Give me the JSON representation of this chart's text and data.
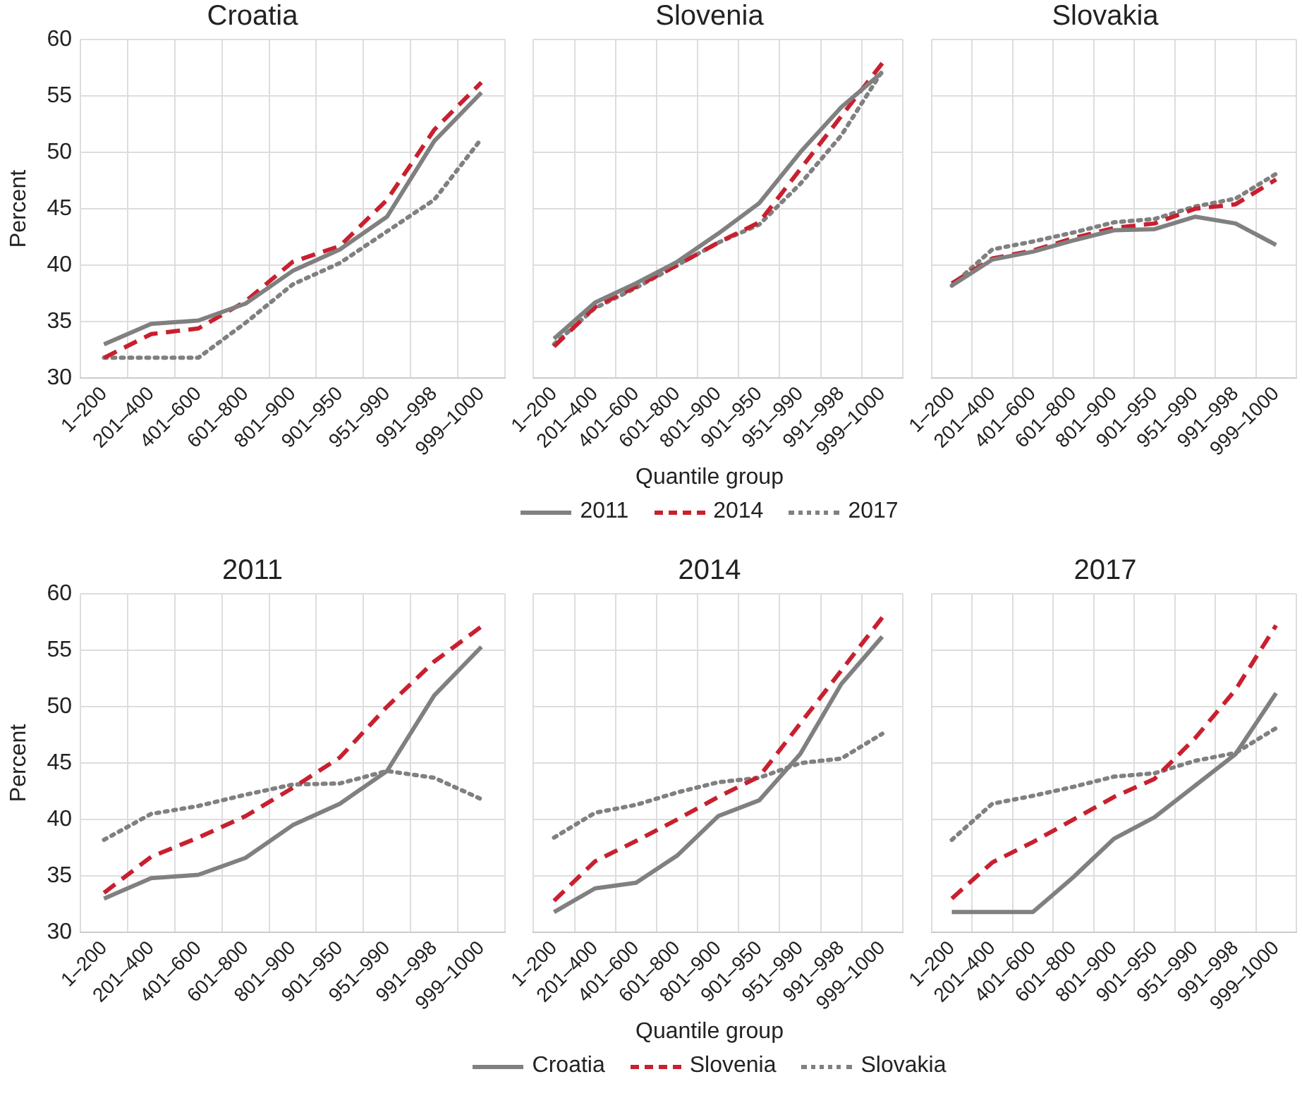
{
  "chart_data": [
    {
      "type": "line",
      "title": "Croatia",
      "ylabel": "Percent",
      "categories": [
        "1–200",
        "201–400",
        "401–600",
        "601–800",
        "801–900",
        "901–950",
        "951–990",
        "991–998",
        "999–1000"
      ],
      "ylim": [
        30,
        60
      ],
      "yticks": [
        30,
        35,
        40,
        45,
        50,
        55,
        60
      ],
      "grid": true,
      "legend": false,
      "marker": "none",
      "series": [
        {
          "color": "#808080",
          "line_style": "solid",
          "values": [
            33,
            34.8,
            35.1,
            36.6,
            39.5,
            41.4,
            44.3,
            51,
            55.3
          ]
        },
        {
          "color": "#c8202f",
          "line_style": "dashed",
          "values": [
            31.8,
            33.9,
            34.4,
            36.8,
            40.3,
            41.7,
            45.8,
            52,
            56.2
          ]
        },
        {
          "color": "#808080",
          "line_style": "dotted",
          "values": [
            31.8,
            31.8,
            31.8,
            34.9,
            38.3,
            40.2,
            43,
            45.8,
            51.2
          ]
        }
      ]
    },
    {
      "type": "line",
      "title": "Slovenia",
      "xlabel": "Quantile group",
      "categories": [
        "1–200",
        "201–400",
        "401–600",
        "601–800",
        "801–900",
        "901–950",
        "951–990",
        "991–998",
        "999–1000"
      ],
      "ylim": [
        30,
        60
      ],
      "yticks": [
        30,
        35,
        40,
        45,
        50,
        55,
        60
      ],
      "grid": true,
      "legend": "bottom",
      "tick_labels": "x",
      "marker": "none",
      "series": [
        {
          "name": "2011",
          "color": "#808080",
          "line_style": "solid",
          "values": [
            33.5,
            36.7,
            38.4,
            40.3,
            42.8,
            45.5,
            50,
            54,
            57.1
          ]
        },
        {
          "name": "2014",
          "color": "#c8202f",
          "line_style": "dashed",
          "values": [
            32.8,
            36.3,
            38.1,
            40,
            42,
            43.8,
            48.5,
            53.2,
            57.9
          ]
        },
        {
          "name": "2017",
          "color": "#808080",
          "line_style": "dotted",
          "values": [
            33,
            36.2,
            38,
            40,
            42,
            43.6,
            47.2,
            51.5,
            57.2
          ]
        }
      ]
    },
    {
      "type": "line",
      "title": "Slovakia",
      "categories": [
        "1–200",
        "201–400",
        "401–600",
        "601–800",
        "801–900",
        "901–950",
        "951–990",
        "991–998",
        "999–1000"
      ],
      "ylim": [
        30,
        60
      ],
      "yticks": [
        30,
        35,
        40,
        45,
        50,
        55,
        60
      ],
      "grid": true,
      "legend": false,
      "tick_labels": "x",
      "marker": "none",
      "series": [
        {
          "color": "#808080",
          "line_style": "solid",
          "values": [
            38.2,
            40.5,
            41.2,
            42.2,
            43.1,
            43.2,
            44.3,
            43.7,
            41.8
          ]
        },
        {
          "color": "#c8202f",
          "line_style": "dashed",
          "values": [
            38.4,
            40.6,
            41.3,
            42.4,
            43.3,
            43.7,
            45,
            45.4,
            47.6
          ]
        },
        {
          "color": "#808080",
          "line_style": "dotted",
          "values": [
            38.2,
            41.4,
            42.1,
            42.9,
            43.8,
            44.1,
            45.2,
            45.9,
            48.1
          ]
        }
      ]
    },
    {
      "type": "line",
      "title": "2011",
      "ylabel": "Percent",
      "categories": [
        "1–200",
        "201–400",
        "401–600",
        "601–800",
        "801–900",
        "901–950",
        "951–990",
        "991–998",
        "999–1000"
      ],
      "ylim": [
        30,
        60
      ],
      "yticks": [
        30,
        35,
        40,
        45,
        50,
        55,
        60
      ],
      "grid": true,
      "legend": false,
      "marker": "none",
      "series": [
        {
          "color": "#808080",
          "line_style": "solid",
          "values": [
            33,
            34.8,
            35.1,
            36.6,
            39.5,
            41.4,
            44.3,
            51,
            55.3
          ]
        },
        {
          "color": "#c8202f",
          "line_style": "dashed",
          "values": [
            33.5,
            36.7,
            38.4,
            40.3,
            42.8,
            45.5,
            50,
            54,
            57.1
          ]
        },
        {
          "color": "#808080",
          "line_style": "dotted",
          "values": [
            38.2,
            40.5,
            41.2,
            42.2,
            43.1,
            43.2,
            44.3,
            43.7,
            41.8
          ]
        }
      ]
    },
    {
      "type": "line",
      "title": "2014",
      "xlabel": "Quantile group",
      "categories": [
        "1–200",
        "201–400",
        "401–600",
        "601–800",
        "801–900",
        "901–950",
        "951–990",
        "991–998",
        "999–1000"
      ],
      "ylim": [
        30,
        60
      ],
      "yticks": [
        30,
        35,
        40,
        45,
        50,
        55,
        60
      ],
      "grid": true,
      "legend": "bottom",
      "tick_labels": "x",
      "marker": "none",
      "series": [
        {
          "name": "Croatia",
          "color": "#808080",
          "line_style": "solid",
          "values": [
            31.8,
            33.9,
            34.4,
            36.8,
            40.3,
            41.7,
            45.8,
            52,
            56.2
          ]
        },
        {
          "name": "Slovenia",
          "color": "#c8202f",
          "line_style": "dashed",
          "values": [
            32.8,
            36.3,
            38.1,
            40,
            42,
            43.8,
            48.5,
            53.2,
            57.9
          ]
        },
        {
          "name": "Slovakia",
          "color": "#808080",
          "line_style": "dotted",
          "values": [
            38.4,
            40.6,
            41.3,
            42.4,
            43.3,
            43.7,
            45,
            45.4,
            47.6
          ]
        }
      ]
    },
    {
      "type": "line",
      "title": "2017",
      "categories": [
        "1–200",
        "201–400",
        "401–600",
        "601–800",
        "801–900",
        "901–950",
        "951–990",
        "991–998",
        "999–1000"
      ],
      "ylim": [
        30,
        60
      ],
      "yticks": [
        30,
        35,
        40,
        45,
        50,
        55,
        60
      ],
      "grid": true,
      "legend": false,
      "tick_labels": "x",
      "marker": "none",
      "series": [
        {
          "color": "#808080",
          "line_style": "solid",
          "values": [
            31.8,
            31.8,
            31.8,
            34.9,
            38.3,
            40.2,
            43,
            45.8,
            51.2
          ]
        },
        {
          "color": "#c8202f",
          "line_style": "dashed",
          "values": [
            33,
            36.2,
            38,
            40,
            42,
            43.6,
            47.2,
            51.5,
            57.2
          ]
        },
        {
          "color": "#808080",
          "line_style": "dotted",
          "values": [
            38.2,
            41.4,
            42.1,
            42.9,
            43.8,
            44.1,
            45.2,
            45.9,
            48.1
          ]
        }
      ]
    }
  ]
}
